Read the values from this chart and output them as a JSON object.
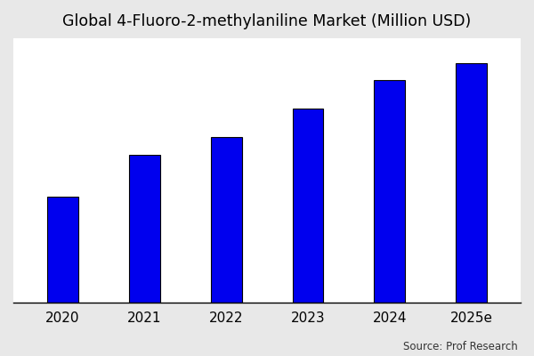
{
  "title": "Global 4-Fluoro-2-methylaniline Market (Million USD)",
  "categories": [
    "2020",
    "2021",
    "2022",
    "2023",
    "2024",
    "2025e"
  ],
  "values": [
    30,
    42,
    47,
    55,
    63,
    68
  ],
  "bar_color": "#0000ee",
  "bar_edgecolor": "#000000",
  "bar_edgewidth": 0.8,
  "background_color": "#ffffff",
  "outer_background_color": "#e8e8e8",
  "title_fontsize": 12.5,
  "tick_fontsize": 11,
  "source_text": "Source: Prof Research",
  "ylim_min": 0,
  "ylim_max": 75,
  "bar_width": 0.38
}
